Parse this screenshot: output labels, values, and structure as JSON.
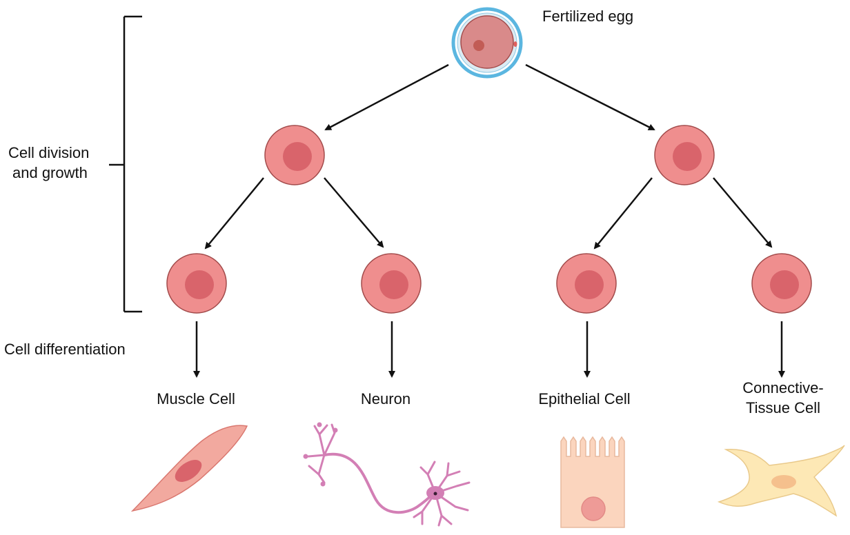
{
  "labels": {
    "fertilized_egg": "Fertilized egg",
    "division_line1": "Cell division",
    "division_line2": "and growth",
    "differentiation": "Cell differentiation"
  },
  "cell_types": [
    {
      "label": "Muscle Cell"
    },
    {
      "label": "Neuron"
    },
    {
      "label": "Epithelial Cell"
    },
    {
      "label_line1": "Connective-",
      "label_line2": "Tissue Cell"
    }
  ],
  "colors": {
    "cell_fill": "#ef8e8e",
    "cell_nucleus": "#d9646b",
    "cell_stroke": "#a24b4b",
    "egg_ring": "#5bb6e0",
    "muscle": "#f2a99f",
    "neuron": "#d37fb5",
    "epithelial": "#fbd5be",
    "connective": "#fde8b5"
  }
}
